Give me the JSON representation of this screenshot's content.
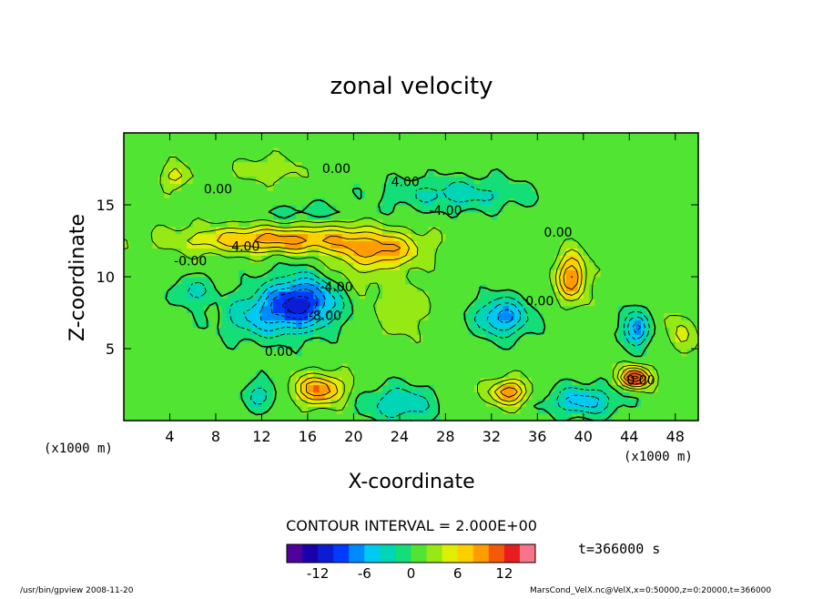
{
  "chart_data": {
    "type": "heatmap",
    "title": "zonal velocity",
    "xlabel": "X-coordinate",
    "ylabel": "Z-coordinate",
    "x_unit": "(x1000 m)",
    "y_unit": "(x1000 m)",
    "xlim": [
      0,
      50
    ],
    "ylim": [
      0,
      20
    ],
    "x_ticks": [
      4,
      8,
      12,
      16,
      20,
      24,
      28,
      32,
      36,
      40,
      44,
      48
    ],
    "y_ticks": [
      5,
      10,
      15
    ],
    "contour_interval_label": "CONTOUR INTERVAL = 2.000E+00",
    "contour_labels": [
      "0.00",
      "0.00",
      "4.00",
      "-4.00",
      "-0.00",
      "4.00",
      "-4.00",
      "-8.00",
      "0.00",
      "0.00",
      "0.00",
      "0.00"
    ],
    "colorbar": {
      "range": [
        -16,
        16
      ],
      "ticks": [
        -12,
        -6,
        0,
        6,
        12
      ]
    },
    "time_label": "t=366000 s",
    "footer_left": "/usr/bin/gpview  2008-11-20",
    "footer_right": "MarsCond_VelX.nc@VelX,x=0:50000,z=0:20000,t=366000",
    "field": {
      "background": 1.0,
      "blobs": [
        {
          "x": 15.5,
          "z": 8.3,
          "sx": 3.2,
          "sz": 1.7,
          "v": -11.0
        },
        {
          "x": 12.0,
          "z": 7.2,
          "sx": 3.5,
          "sz": 1.5,
          "v": -5.0
        },
        {
          "x": 33.0,
          "z": 7.2,
          "sx": 2.2,
          "sz": 1.3,
          "v": -8.0
        },
        {
          "x": 44.5,
          "z": 6.4,
          "sx": 1.1,
          "sz": 1.2,
          "v": -8.0
        },
        {
          "x": 6.0,
          "z": 9.0,
          "sx": 1.5,
          "sz": 1.0,
          "v": -4.0
        },
        {
          "x": 29.0,
          "z": 15.8,
          "sx": 6.0,
          "sz": 1.1,
          "v": -4.0
        },
        {
          "x": 40.0,
          "z": 1.4,
          "sx": 3.0,
          "sz": 1.0,
          "v": -6.0
        },
        {
          "x": 24.0,
          "z": 1.2,
          "sx": 3.0,
          "sz": 1.2,
          "v": -5.0
        },
        {
          "x": 12.0,
          "z": 1.8,
          "sx": 1.5,
          "sz": 1.0,
          "v": -4.0
        },
        {
          "x": 16.5,
          "z": 14.5,
          "sx": 5.0,
          "sz": 0.6,
          "v": -2.0
        },
        {
          "x": 13.5,
          "z": 12.6,
          "sx": 8.0,
          "sz": 0.9,
          "v": 8.0
        },
        {
          "x": 23.0,
          "z": 11.8,
          "sx": 3.0,
          "sz": 1.1,
          "v": 6.0
        },
        {
          "x": 20.0,
          "z": 11.2,
          "sx": 2.5,
          "sz": 2.5,
          "v": 3.0
        },
        {
          "x": 39.0,
          "z": 10.0,
          "sx": 1.3,
          "sz": 1.6,
          "v": 9.0
        },
        {
          "x": 44.5,
          "z": 3.0,
          "sx": 1.3,
          "sz": 0.7,
          "v": 12.0
        },
        {
          "x": 17.0,
          "z": 2.2,
          "sx": 2.2,
          "sz": 1.0,
          "v": 9.0
        },
        {
          "x": 33.5,
          "z": 2.0,
          "sx": 1.6,
          "sz": 0.8,
          "v": 9.0
        },
        {
          "x": 4.5,
          "z": 17.0,
          "sx": 1.2,
          "sz": 0.8,
          "v": 4.0
        },
        {
          "x": 12.5,
          "z": 17.5,
          "sx": 2.5,
          "sz": 0.8,
          "v": 3.0
        },
        {
          "x": 48.5,
          "z": 6.0,
          "sx": 1.0,
          "sz": 1.3,
          "v": 4.0
        },
        {
          "x": 24.0,
          "z": 8.0,
          "sx": 2.0,
          "sz": 2.0,
          "v": 3.0
        }
      ]
    }
  }
}
